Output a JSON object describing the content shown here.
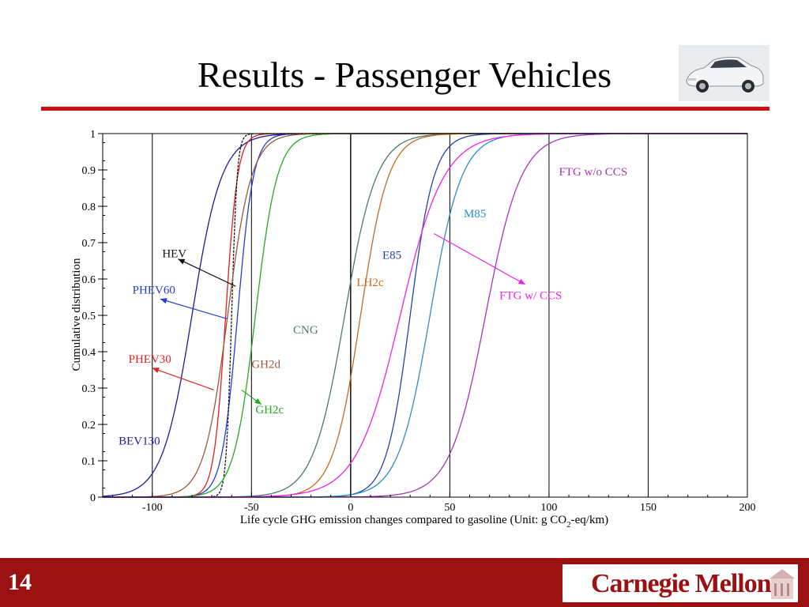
{
  "slide": {
    "title": "Results - Passenger Vehicles",
    "number": "14",
    "logo_text": "Carnegie Mellon"
  },
  "colors": {
    "rule": "#cc1111",
    "footer": "#9b1111"
  },
  "chart_data": {
    "type": "line",
    "ylabel": "Cumulative distribution",
    "xlabel_main": "Life cycle GHG emission changes compared to gasoline (Unit: g CO",
    "xlabel_sub": "2",
    "xlabel_end": "-eq/km)",
    "xlim": [
      -125,
      200
    ],
    "ylim": [
      0,
      1
    ],
    "xticks": [
      -100,
      -50,
      0,
      50,
      100,
      150,
      200
    ],
    "yticks": [
      0,
      0.1,
      0.2,
      0.3,
      0.4,
      0.5,
      0.6,
      0.7,
      0.8,
      0.9,
      1
    ],
    "x_grid": [
      -100,
      -50,
      0,
      50,
      100,
      150
    ],
    "series": [
      {
        "name": "BEV130",
        "color": "#1a1a9c",
        "median": -80,
        "scale": 7.5
      },
      {
        "name": "PHEV60",
        "color": "#1f3fd6",
        "median": -57,
        "scale": 4
      },
      {
        "name": "PHEV30",
        "color": "#e02020",
        "median": -63,
        "scale": 3
      },
      {
        "name": "HEV",
        "color": "#111111",
        "median": -60,
        "scale": 1.4,
        "dashed": true
      },
      {
        "name": "GH2c",
        "color": "#22aa22",
        "median": -48,
        "scale": 5.5
      },
      {
        "name": "GH2d",
        "color": "#9a5a3a",
        "median": -62,
        "scale": 6
      },
      {
        "name": "CNG",
        "color": "#4a7a6a",
        "median": -3,
        "scale": 8
      },
      {
        "name": "LH2c",
        "color": "#c86a1e",
        "median": 5,
        "scale": 7
      },
      {
        "name": "E85",
        "color": "#2244aa",
        "median": 30,
        "scale": 6
      },
      {
        "name": "M85",
        "color": "#2a8ec8",
        "median": 40,
        "scale": 8
      },
      {
        "name": "FTG w/ CCS",
        "color": "#ee22ee",
        "median": 25,
        "scale": 11
      },
      {
        "name": "FTG w/o CCS",
        "color": "#aa33bb",
        "median": 68,
        "scale": 9
      }
    ],
    "labels": [
      {
        "text": "HEV",
        "x": -95,
        "y": 0.66,
        "color": "#111111"
      },
      {
        "text": "PHEV60",
        "x": -110,
        "y": 0.56,
        "color": "#1f3fd6"
      },
      {
        "text": "PHEV30",
        "x": -112,
        "y": 0.37,
        "color": "#e02020"
      },
      {
        "text": "BEV130",
        "x": -117,
        "y": 0.145,
        "color": "#1a1a9c"
      },
      {
        "text": "GH2d",
        "x": -50,
        "y": 0.355,
        "color": "#9a5a3a"
      },
      {
        "text": "GH2c",
        "x": -48,
        "y": 0.23,
        "color": "#22aa22"
      },
      {
        "text": "CNG",
        "x": -29,
        "y": 0.45,
        "color": "#4a7a6a"
      },
      {
        "text": "LH2c",
        "x": 3,
        "y": 0.58,
        "color": "#c86a1e"
      },
      {
        "text": "E85",
        "x": 16,
        "y": 0.655,
        "color": "#2244aa"
      },
      {
        "text": "M85",
        "x": 57,
        "y": 0.77,
        "color": "#2a8ec8"
      },
      {
        "text": "FTG w/o CCS",
        "x": 105,
        "y": 0.885,
        "color": "#aa33bb"
      },
      {
        "text": "FTG w/ CCS",
        "x": 75,
        "y": 0.545,
        "color": "#ee22ee"
      }
    ],
    "arrows": [
      {
        "from": [
          -58,
          0.58
        ],
        "to": [
          -87,
          0.655
        ],
        "color": "#111111"
      },
      {
        "from": [
          -62,
          0.49
        ],
        "to": [
          -96,
          0.545
        ],
        "color": "#1f3fd6"
      },
      {
        "from": [
          -69,
          0.295
        ],
        "to": [
          -100,
          0.355
        ],
        "color": "#e02020"
      },
      {
        "from": [
          -55,
          0.295
        ],
        "to": [
          -45,
          0.255
        ],
        "color": "#22aa22"
      },
      {
        "from": [
          42,
          0.725
        ],
        "to": [
          88,
          0.585
        ],
        "color": "#ee22ee"
      }
    ]
  }
}
